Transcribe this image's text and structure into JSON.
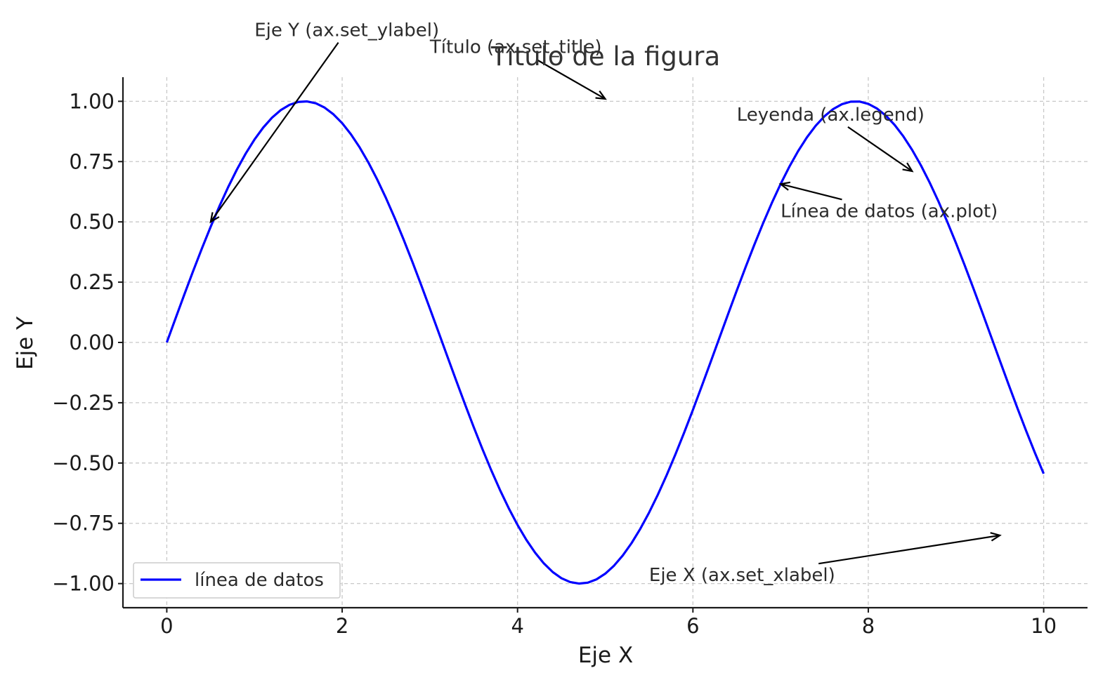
{
  "chart_data": {
    "type": "line",
    "title": "Título de la figura",
    "xlabel": "Eje X",
    "ylabel": "Eje Y",
    "xlim": [
      -0.5,
      10.5
    ],
    "ylim": [
      -1.1,
      1.1
    ],
    "x_ticks": [
      0,
      2,
      4,
      6,
      8,
      10
    ],
    "x_tick_labels": [
      "0",
      "2",
      "4",
      "6",
      "8",
      "10"
    ],
    "y_ticks": [
      1.0,
      0.75,
      0.5,
      0.25,
      0.0,
      -0.25,
      -0.5,
      -0.75,
      -1.0
    ],
    "y_tick_labels": [
      "1.00",
      "0.75",
      "0.50",
      "0.25",
      "0.00",
      "−0.25",
      "−0.50",
      "−0.75",
      "−1.00"
    ],
    "grid": true,
    "legend_position": "lower-left",
    "series": [
      {
        "name": "línea de datos",
        "color": "#0000ff",
        "function": "sin(x)",
        "x_range": [
          0,
          10
        ]
      }
    ],
    "annotations": [
      {
        "text": "Eje Y (ax.set_ylabel)",
        "text_xy": [
          1.0,
          1.27
        ],
        "point_xy": [
          0.5,
          0.5
        ]
      },
      {
        "text": "Título (ax.set_title)",
        "text_xy": [
          3.0,
          1.2
        ],
        "point_xy": [
          5.0,
          1.01
        ]
      },
      {
        "text": "Leyenda (ax.legend)",
        "text_xy": [
          6.5,
          0.92
        ],
        "point_xy": [
          8.5,
          0.71
        ]
      },
      {
        "text": "Línea de datos (ax.plot)",
        "text_xy": [
          7.0,
          0.52
        ],
        "point_xy": [
          7.0,
          0.657
        ]
      },
      {
        "text": "Eje X (ax.set_xlabel)",
        "text_xy": [
          5.5,
          -0.99
        ],
        "point_xy": [
          9.5,
          -0.8
        ]
      }
    ]
  }
}
